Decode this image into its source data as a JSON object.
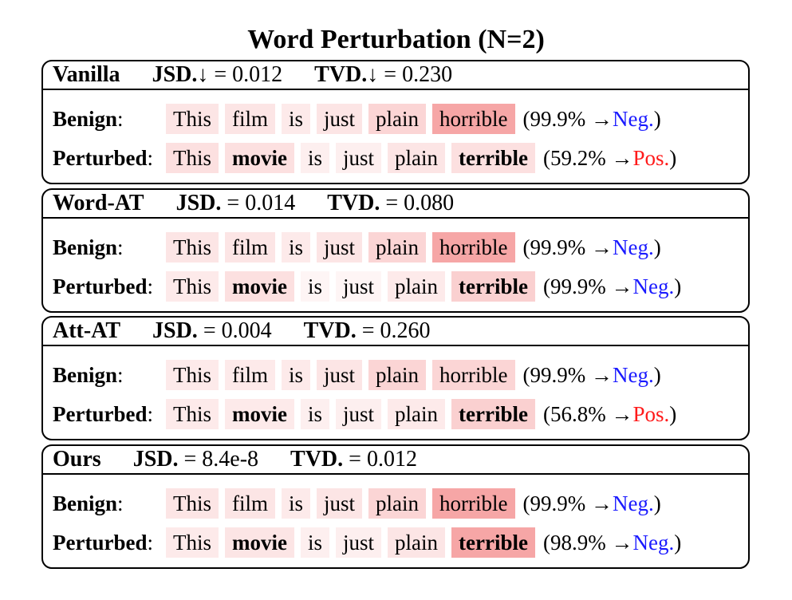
{
  "title": "Word Perturbation (N=2)",
  "row_labels": {
    "benign": "Benign",
    "perturbed": "Perturbed",
    "sep": ":"
  },
  "colors": {
    "neg": "#1a1aff",
    "pos": "#ff1a1a",
    "heat_light": "#fde8e8",
    "heat_mid": "#fbd2d2",
    "heat_strong": "#f8b4b4"
  },
  "panels": [
    {
      "name": "Vanilla",
      "jsd_label": "JSD.↓",
      "jsd_value": "= 0.012",
      "tvd_label": "TVD.↓",
      "tvd_value": "= 0.230",
      "benign": {
        "tokens": [
          "This",
          "film",
          "is",
          "just",
          "plain",
          "horrible"
        ],
        "heat": [
          0.25,
          0.25,
          0.2,
          0.25,
          0.4,
          0.85
        ],
        "pred_open": "(99.9% →",
        "pred_class": "Neg.",
        "pred_close": ")",
        "pred_polarity": "neg"
      },
      "perturbed": {
        "tokens": [
          "This",
          "movie",
          "is",
          "just",
          "plain",
          "terrible"
        ],
        "heat": [
          0.3,
          0.3,
          0.15,
          0.15,
          0.25,
          0.3
        ],
        "pred_open": "(59.2% →",
        "pred_class": "Pos.",
        "pred_close": ")",
        "pred_polarity": "pos"
      }
    },
    {
      "name": "Word-AT",
      "jsd_label": "JSD.",
      "jsd_value": "= 0.014",
      "tvd_label": "TVD.",
      "tvd_value": "= 0.080",
      "benign": {
        "tokens": [
          "This",
          "film",
          "is",
          "just",
          "plain",
          "horrible"
        ],
        "heat": [
          0.25,
          0.25,
          0.2,
          0.25,
          0.4,
          0.85
        ],
        "pred_open": "(99.9% →",
        "pred_class": "Neg.",
        "pred_close": ")",
        "pred_polarity": "neg"
      },
      "perturbed": {
        "tokens": [
          "This",
          "movie",
          "is",
          "just",
          "plain",
          "terrible"
        ],
        "heat": [
          0.2,
          0.3,
          0.1,
          0.1,
          0.2,
          0.45
        ],
        "pred_open": "(99.9% →",
        "pred_class": "Neg.",
        "pred_close": ")",
        "pred_polarity": "neg"
      }
    },
    {
      "name": "Att-AT",
      "jsd_label": "JSD.",
      "jsd_value": "= 0.004",
      "tvd_label": "TVD.",
      "tvd_value": "= 0.260",
      "benign": {
        "tokens": [
          "This",
          "film",
          "is",
          "just",
          "plain",
          "horrible"
        ],
        "heat": [
          0.2,
          0.2,
          0.2,
          0.25,
          0.4,
          0.4
        ],
        "pred_open": "(99.9% →",
        "pred_class": "Neg.",
        "pred_close": ")",
        "pred_polarity": "neg"
      },
      "perturbed": {
        "tokens": [
          "This",
          "movie",
          "is",
          "just",
          "plain",
          "terrible"
        ],
        "heat": [
          0.2,
          0.2,
          0.15,
          0.15,
          0.2,
          0.45
        ],
        "pred_open": "(56.8% →",
        "pred_class": "Pos.",
        "pred_close": ")",
        "pred_polarity": "pos"
      }
    },
    {
      "name": "Ours",
      "jsd_label": "JSD.",
      "jsd_value": "= 8.4e-8",
      "tvd_label": "TVD.",
      "tvd_value": "= 0.012",
      "benign": {
        "tokens": [
          "This",
          "film",
          "is",
          "just",
          "plain",
          "horrible"
        ],
        "heat": [
          0.25,
          0.25,
          0.2,
          0.25,
          0.4,
          0.85
        ],
        "pred_open": "(99.9% →",
        "pred_class": "Neg.",
        "pred_close": ")",
        "pred_polarity": "neg"
      },
      "perturbed": {
        "tokens": [
          "This",
          "movie",
          "is",
          "just",
          "plain",
          "terrible"
        ],
        "heat": [
          0.2,
          0.25,
          0.15,
          0.15,
          0.25,
          0.85
        ],
        "pred_open": "(98.9% →",
        "pred_class": "Neg.",
        "pred_close": ")",
        "pred_polarity": "neg"
      }
    }
  ]
}
